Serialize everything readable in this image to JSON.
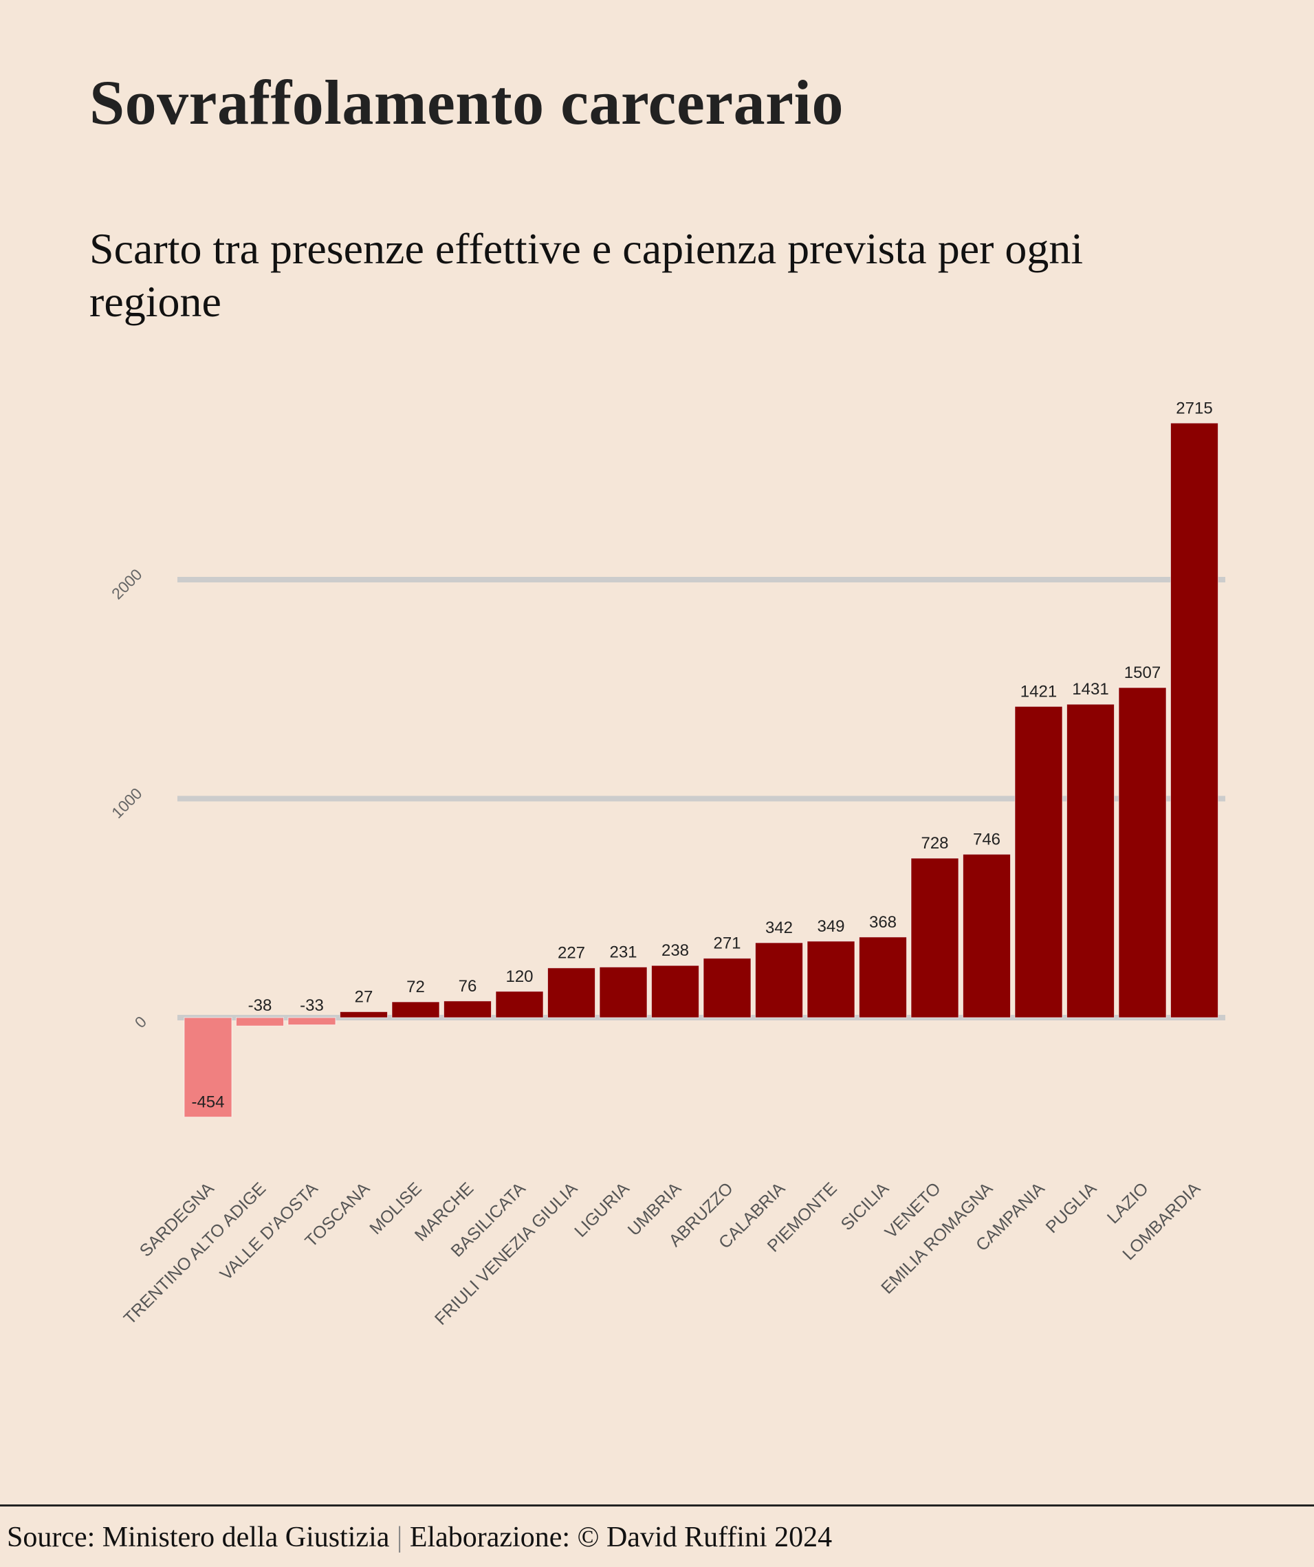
{
  "header": {
    "title": "Sovraffolamento carcerario",
    "subtitle": "Scarto tra presenze effettive e capienza prevista per ogni regione"
  },
  "footer": {
    "source": "Source: Ministero della Giustizia",
    "separator": "|",
    "credit": "Elaborazione: © David Ruffini 2024"
  },
  "colors": {
    "background": "#f5e6d8",
    "positive_bar": "#8b0000",
    "negative_bar": "#f08080",
    "gridline": "#cccccc"
  },
  "chart_data": {
    "type": "bar",
    "title": "Sovraffolamento carcerario",
    "subtitle": "Scarto tra presenze effettive e capienza prevista per ogni regione",
    "xlabel": "",
    "ylabel": "",
    "categories": [
      "SARDEGNA",
      "TRENTINO ALTO ADIGE",
      "VALLE D'AOSTA",
      "TOSCANA",
      "MOLISE",
      "MARCHE",
      "BASILICATA",
      "FRIULI VENEZIA GIULIA",
      "LIGURIA",
      "UMBRIA",
      "ABRUZZO",
      "CALABRIA",
      "PIEMONTE",
      "SICILIA",
      "VENETO",
      "EMILIA ROMAGNA",
      "CAMPANIA",
      "PUGLIA",
      "LAZIO",
      "LOMBARDIA"
    ],
    "values": [
      -454,
      -38,
      -33,
      27,
      72,
      76,
      120,
      227,
      231,
      238,
      271,
      342,
      349,
      368,
      728,
      746,
      1421,
      1431,
      1507,
      2715
    ],
    "yticks": [
      0,
      1000,
      2000
    ],
    "ytick_labels": [
      "0",
      "1000",
      "2000"
    ],
    "ylim": [
      -454,
      2715
    ],
    "grid": true,
    "legend": "none",
    "data_labels": true
  }
}
